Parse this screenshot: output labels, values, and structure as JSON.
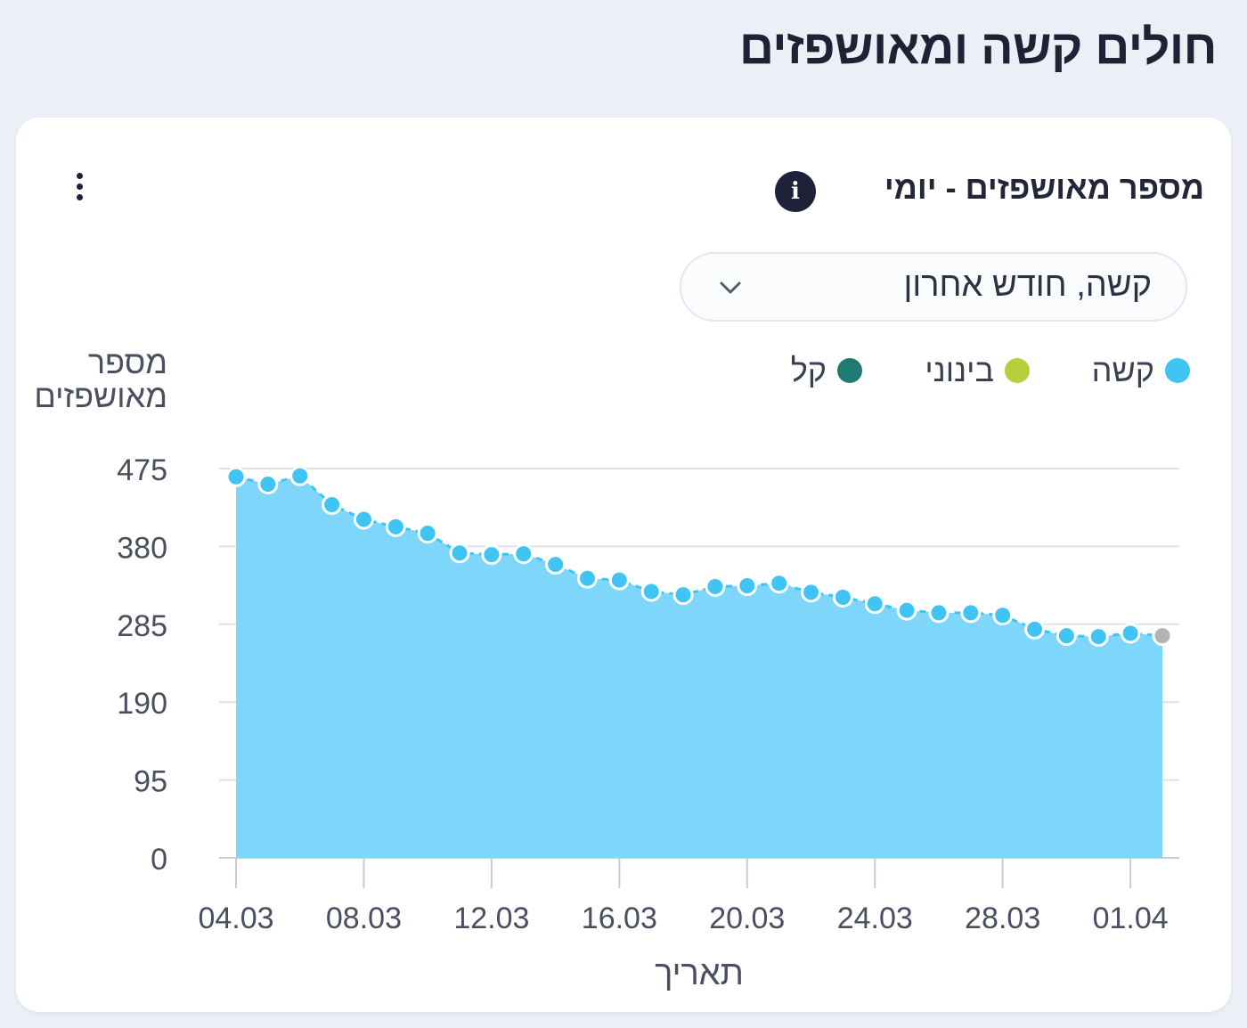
{
  "page": {
    "title": "חולים קשה ומאושפזים"
  },
  "card": {
    "title": "מספר מאושפזים - יומי",
    "info_icon": "info-icon",
    "menu_icon": "kebab-menu-icon",
    "dropdown": {
      "selected": "קשה, חודש אחרון",
      "icon": "chevron-down-icon"
    }
  },
  "legend": [
    {
      "label": "קשה",
      "color": "#40c4f4"
    },
    {
      "label": "בינוני",
      "color": "#b5cf3d"
    },
    {
      "label": "קל",
      "color": "#1e7b74"
    }
  ],
  "chart_data": {
    "type": "area",
    "ylabel": "מספר מאושפזים",
    "xlabel": "תאריך",
    "ylim": [
      0,
      475
    ],
    "yticks": [
      0,
      95,
      190,
      285,
      380,
      475
    ],
    "x_ticks": [
      "04.03",
      "08.03",
      "12.03",
      "16.03",
      "20.03",
      "24.03",
      "28.03",
      "01.04"
    ],
    "grid": true,
    "legend_position": "top-right",
    "fill_color": "#7fd6fb",
    "line_color": "#40c4f4",
    "last_point_color": "#b3b3b3",
    "series": [
      {
        "name": "קשה",
        "x": [
          "04.03",
          "05.03",
          "06.03",
          "07.03",
          "08.03",
          "09.03",
          "10.03",
          "11.03",
          "12.03",
          "13.03",
          "14.03",
          "15.03",
          "16.03",
          "17.03",
          "18.03",
          "19.03",
          "20.03",
          "21.03",
          "22.03",
          "23.03",
          "24.03",
          "25.03",
          "26.03",
          "27.03",
          "28.03",
          "29.03",
          "30.03",
          "31.03",
          "01.04",
          "02.04"
        ],
        "values": [
          465,
          456,
          466,
          431,
          413,
          404,
          396,
          372,
          370,
          371,
          358,
          341,
          339,
          325,
          321,
          331,
          332,
          335,
          324,
          318,
          310,
          302,
          299,
          299,
          296,
          279,
          271,
          270,
          274,
          271
        ]
      }
    ]
  }
}
